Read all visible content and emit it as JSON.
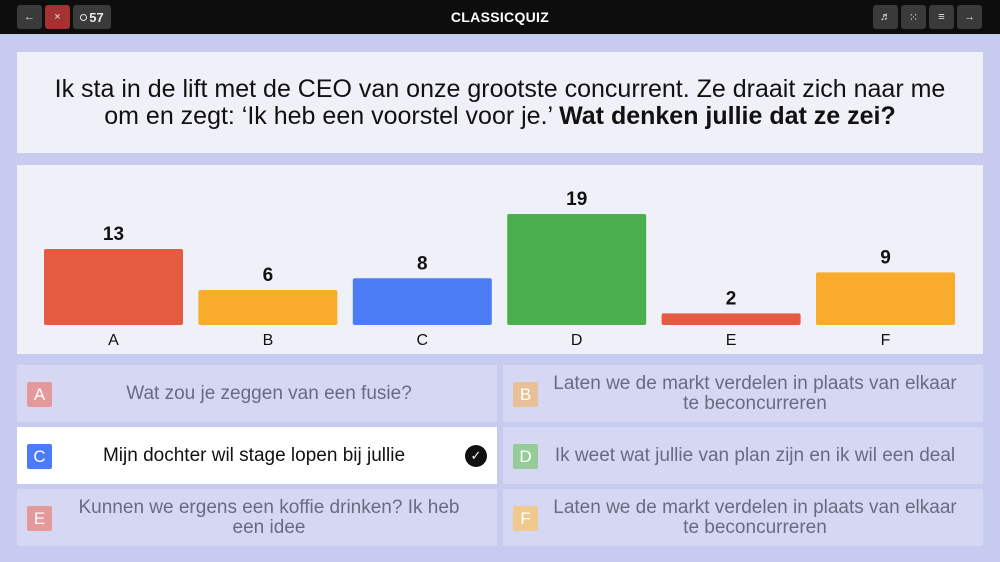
{
  "topbar": {
    "back_icon": "←",
    "close_icon": "×",
    "timer": "57",
    "title": "CLASSICQUIZ",
    "music_icon": "♬",
    "grid_icon": "⁙",
    "menu_icon": "≡",
    "next_icon": "→"
  },
  "question": {
    "text_plain": "Ik sta in de lift met de CEO van onze grootste concurrent. Ze draait zich naar me om en zegt: ‘Ik heb een voorstel voor je.’ ",
    "text_bold": "Wat denken jullie dat ze zei?"
  },
  "chart_data": {
    "type": "bar",
    "categories": [
      "A",
      "B",
      "C",
      "D",
      "E",
      "F"
    ],
    "values": [
      13,
      6,
      8,
      19,
      2,
      9
    ],
    "colors": [
      "#e55b42",
      "#f9ab2c",
      "#4b7bf5",
      "#4aaf4c",
      "#e55b42",
      "#f9ab2c"
    ],
    "ylim": [
      0,
      19
    ]
  },
  "answers": [
    {
      "letter": "A",
      "text": "Wat zou je zeggen van een fusie?",
      "color": "#e5999a"
    },
    {
      "letter": "B",
      "text": "Laten we de markt verdelen in plaats van elkaar te beconcurreren",
      "color": "#e7c097"
    },
    {
      "letter": "C",
      "text": "Mijn dochter wil stage lopen bij jullie",
      "color": "#4b7bf5",
      "correct": true
    },
    {
      "letter": "D",
      "text": "Ik weet wat jullie van plan zijn en ik wil een deal",
      "color": "#95cc9a"
    },
    {
      "letter": "E",
      "text": "Kunnen we ergens een koffie drinken? Ik heb een idee",
      "color": "#e5999a"
    },
    {
      "letter": "F",
      "text": "Laten we de markt verdelen in plaats van elkaar te beconcurreren",
      "color": "#f0c98c"
    }
  ],
  "check_icon": "✓"
}
